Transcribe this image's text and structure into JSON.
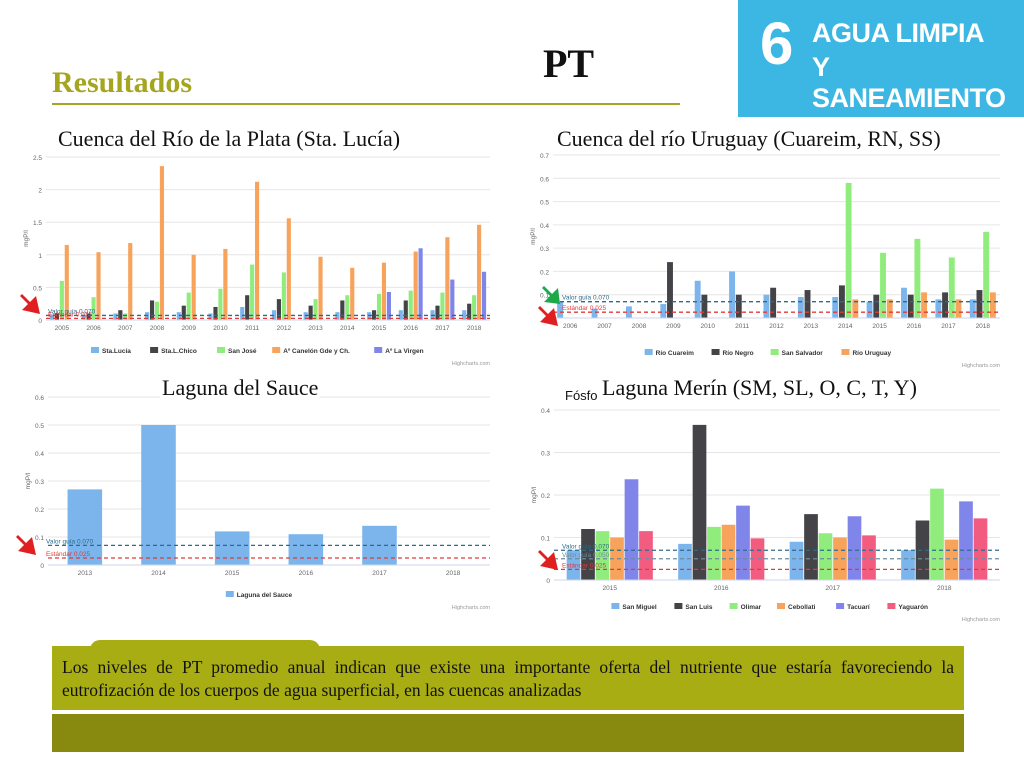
{
  "slide": {
    "title": "Resultados",
    "heading": "PT",
    "sdg": {
      "number": "6",
      "line1": "AGUA LIMPIA",
      "line2": "Y SANEAMIENTO",
      "color": "#3cb6e3"
    },
    "note": "Los niveles de PT promedio anual indican que existe una importante oferta del nutriente que estaría favoreciendo la eutrofización de los cuerpos de agua superficial, en las cuencas analizadas",
    "accent": "#a5a520"
  },
  "chart_data": [
    {
      "id": "sta-lucia",
      "type": "bar",
      "title": "Cuenca del Río de la Plata (Sta. Lucía)",
      "ylabel": "mgP/l",
      "ylim": [
        0,
        2.5
      ],
      "yticks": [
        "0",
        "0.5",
        "1",
        "1.5",
        "2",
        "2.5"
      ],
      "categories": [
        "2005",
        "2006",
        "2007",
        "2008",
        "2009",
        "2010",
        "2011",
        "2012",
        "2013",
        "2014",
        "2015",
        "2016",
        "2017",
        "2018"
      ],
      "series": [
        {
          "name": "Sta.Lucía",
          "color": "#7cb5ec",
          "values": [
            0.08,
            0.08,
            0.1,
            0.12,
            0.12,
            0.1,
            0.2,
            0.15,
            0.12,
            0.12,
            0.12,
            0.15,
            0.15,
            0.15
          ]
        },
        {
          "name": "Sta.L.Chico",
          "color": "#434348",
          "values": [
            0.1,
            0.1,
            0.15,
            0.3,
            0.22,
            0.2,
            0.38,
            0.32,
            0.22,
            0.3,
            0.15,
            0.3,
            0.22,
            0.25
          ]
        },
        {
          "name": "San José",
          "color": "#90ed7d",
          "values": [
            0.6,
            0.35,
            0.1,
            0.28,
            0.42,
            0.48,
            0.85,
            0.73,
            0.32,
            0.38,
            0.4,
            0.45,
            0.42,
            0.38
          ]
        },
        {
          "name": "Aº Canelón Gde y Ch.",
          "color": "#f7a35c",
          "values": [
            1.15,
            1.04,
            1.18,
            2.36,
            1.0,
            1.09,
            2.12,
            1.56,
            0.97,
            0.8,
            0.88,
            1.05,
            1.27,
            1.46
          ]
        },
        {
          "name": "Aº La Virgen",
          "color": "#8085e9",
          "values": [
            0,
            0,
            0,
            0,
            0,
            0,
            0,
            0,
            0,
            0,
            0.43,
            1.1,
            0.62,
            0.74
          ]
        }
      ],
      "guides": [
        {
          "label": "Valor guía 0.070",
          "value": 0.07,
          "color": "#2b6c8c"
        },
        {
          "label": "Estándar 0.025",
          "value": 0.025,
          "color": "#e03a3a"
        }
      ],
      "credits": "Highcharts.com",
      "legend": "bottom"
    },
    {
      "id": "uruguay",
      "type": "bar",
      "title": "Cuenca del río Uruguay (Cuareim, RN, SS)",
      "ylabel": "mgP/l",
      "ylim": [
        0,
        0.7
      ],
      "yticks": [
        "0",
        "0.1",
        "0.2",
        "0.3",
        "0.4",
        "0.5",
        "0.6",
        "0.7"
      ],
      "categories": [
        "2006",
        "2007",
        "2008",
        "2009",
        "2010",
        "2011",
        "2012",
        "2013",
        "2014",
        "2015",
        "2016",
        "2017",
        "2018"
      ],
      "series": [
        {
          "name": "Río Cuareim",
          "color": "#7cb5ec",
          "values": [
            0.07,
            0.04,
            0.05,
            0.06,
            0.16,
            0.2,
            0.1,
            0.09,
            0.09,
            0.07,
            0.13,
            0.08,
            0.08
          ]
        },
        {
          "name": "Río Negro",
          "color": "#434348",
          "values": [
            0,
            0,
            0,
            0.24,
            0.1,
            0.1,
            0.13,
            0.12,
            0.14,
            0.1,
            0.1,
            0.11,
            0.12
          ]
        },
        {
          "name": "San Salvador",
          "color": "#90ed7d",
          "values": [
            0,
            0,
            0,
            0,
            0,
            0,
            0,
            0,
            0.58,
            0.28,
            0.34,
            0.26,
            0.37
          ]
        },
        {
          "name": "Río Uruguay",
          "color": "#f7a35c",
          "values": [
            0,
            0,
            0,
            0,
            0,
            0,
            0,
            0,
            0.08,
            0.08,
            0.11,
            0.08,
            0.11
          ]
        }
      ],
      "guides": [
        {
          "label": "Valor guía 0.070",
          "value": 0.07,
          "color": "#2b6c8c"
        },
        {
          "label": "Estándar 0.025",
          "value": 0.025,
          "color": "#e03a3a"
        }
      ],
      "credits": "Highcharts.com",
      "legend": "bottom"
    },
    {
      "id": "sauce",
      "type": "bar",
      "title": "Laguna del Sauce",
      "ylabel": "mgP/l",
      "ylim": [
        0,
        0.6
      ],
      "yticks": [
        "0",
        "0.1",
        "0.2",
        "0.3",
        "0.4",
        "0.5",
        "0.6"
      ],
      "categories": [
        "2013",
        "2014",
        "2015",
        "2016",
        "2017",
        "2018"
      ],
      "series": [
        {
          "name": "Laguna del Sauce",
          "color": "#7cb5ec",
          "values": [
            0.27,
            0.5,
            0.12,
            0.11,
            0.14,
            0
          ]
        }
      ],
      "guides": [
        {
          "label": "Valor guía 0.070",
          "value": 0.07,
          "color": "#2b6c8c"
        },
        {
          "label": "Estándar 0.025",
          "value": 0.025,
          "color": "#e03a3a"
        }
      ],
      "credits": "Highcharts.com",
      "legend": "bottom"
    },
    {
      "id": "merin",
      "type": "bar",
      "title": "Laguna Merín (SM, SL, O, C, T, Y)",
      "pretitle": "Fósfo",
      "ylabel": "mgP/l",
      "ylim": [
        0,
        0.4
      ],
      "yticks": [
        "0",
        "0.1",
        "0.2",
        "0.3",
        "0.4"
      ],
      "categories": [
        "2015",
        "2016",
        "2017",
        "2018"
      ],
      "series": [
        {
          "name": "San Miguel",
          "color": "#7cb5ec",
          "values": [
            0.07,
            0.085,
            0.09,
            0.07
          ]
        },
        {
          "name": "San Luis",
          "color": "#434348",
          "values": [
            0.12,
            0.365,
            0.155,
            0.14
          ]
        },
        {
          "name": "Olimar",
          "color": "#90ed7d",
          "values": [
            0.115,
            0.125,
            0.11,
            0.215
          ]
        },
        {
          "name": "Cebollati",
          "color": "#f7a35c",
          "values": [
            0.1,
            0.13,
            0.1,
            0.095
          ]
        },
        {
          "name": "Tacuarí",
          "color": "#8085e9",
          "values": [
            0.237,
            0.175,
            0.15,
            0.185
          ]
        },
        {
          "name": "Yaguarón",
          "color": "#f15c80",
          "values": [
            0.115,
            0.098,
            0.105,
            0.145
          ]
        }
      ],
      "guides": [
        {
          "label": "Valor guía 0.070",
          "value": 0.07,
          "color": "#2b6c8c"
        },
        {
          "label": "Valor guía 0.050",
          "value": 0.05,
          "color": "#6b8c9c"
        },
        {
          "label": "Estándar 0.025",
          "value": 0.025,
          "color": "#e03a3a"
        }
      ],
      "credits": "Highcharts.com",
      "legend": "bottom"
    }
  ]
}
